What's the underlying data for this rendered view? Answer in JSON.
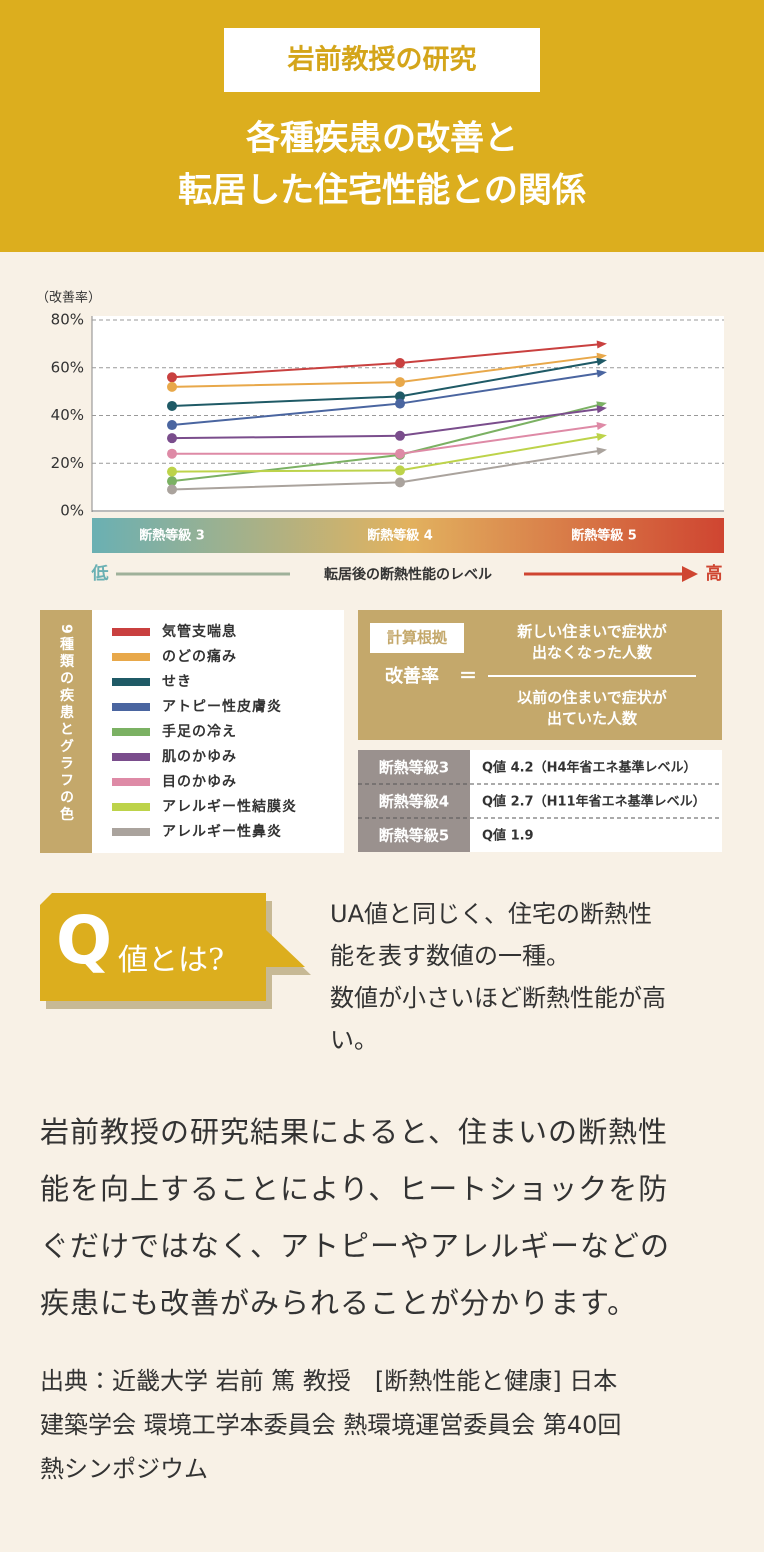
{
  "header": {
    "label": "岩前教授の研究",
    "title": [
      "各種疾患の改善と",
      "転居した住宅性能との関係"
    ]
  },
  "chart_data": {
    "type": "line",
    "y_label": "（改善率）",
    "categories": [
      "断熱等級 3",
      "断熱等級 4",
      "断熱等級 5"
    ],
    "x_label": "転居後の断熱性能のレベル",
    "low_label": "低",
    "high_label": "高",
    "ylim": [
      0,
      80
    ],
    "yticks": [
      {
        "value": 0,
        "label": "0%"
      },
      {
        "value": 20,
        "label": "20%"
      },
      {
        "value": 40,
        "label": "40%"
      },
      {
        "value": 60,
        "label": "60%"
      },
      {
        "value": 80,
        "label": "80%"
      }
    ],
    "grid": true,
    "legend_title": "9種類の疾患とグラフの色",
    "series": [
      {
        "name": "気管支喘息",
        "color": "#c9403f",
        "values": [
          56,
          62,
          70
        ]
      },
      {
        "name": "のどの痛み",
        "color": "#e8a84a",
        "values": [
          52,
          54,
          65
        ]
      },
      {
        "name": "せき",
        "color": "#1f5a66",
        "values": [
          44,
          48,
          63
        ]
      },
      {
        "name": "アトピー性皮膚炎",
        "color": "#4a65a0",
        "values": [
          36,
          45,
          58
        ]
      },
      {
        "name": "手足の冷え",
        "color": "#7bb163",
        "values": [
          12.5,
          23.5,
          45
        ]
      },
      {
        "name": "肌のかゆみ",
        "color": "#7a4d8c",
        "values": [
          30.5,
          31.5,
          43
        ]
      },
      {
        "name": "目のかゆみ",
        "color": "#de8aa6",
        "values": [
          24,
          24,
          36
        ]
      },
      {
        "name": "アレルギー性結膜炎",
        "color": "#bdd34a",
        "values": [
          16.5,
          17,
          31.5
        ]
      },
      {
        "name": "アレルギー性鼻炎",
        "color": "#aaa39d",
        "values": [
          9,
          12,
          25.5
        ]
      }
    ]
  },
  "calc": {
    "label": "計算根拠",
    "lhs": "改善率",
    "eq": "＝",
    "numerator": [
      "新しい住まいで症状が",
      "出なくなった人数"
    ],
    "denominator": [
      "以前の住まいで症状が",
      "出ていた人数"
    ]
  },
  "table": {
    "rows": [
      [
        "断熱等級3",
        "Q値 4.2（H4年省エネ基準レベル）"
      ],
      [
        "断熱等級4",
        "Q値 2.7（H11年省エネ基準レベル）"
      ],
      [
        "断熱等級5",
        "Q値 1.9"
      ]
    ]
  },
  "q": {
    "letter": "Q",
    "title": "値とは?",
    "description": [
      "UA値と同じく、住宅の断熱性",
      "能を表す数値の一種。",
      "数値が小さいほど断熱性能が高",
      "い。"
    ]
  },
  "paragraph": [
    "岩前教授の研究結果によると、住まいの断熱性",
    "能を向上することにより、ヒートショックを防",
    "ぐだけではなく、アトピーやアレルギーなどの",
    "疾患にも改善がみられることが分かります。"
  ],
  "source": [
    "出典：近畿大学 岩前 篤 教授　[断熱性能と健康] 日本",
    "建築学会 環境工学本委員会 熱環境運営委員会 第40回",
    "熱シンポジウム"
  ]
}
